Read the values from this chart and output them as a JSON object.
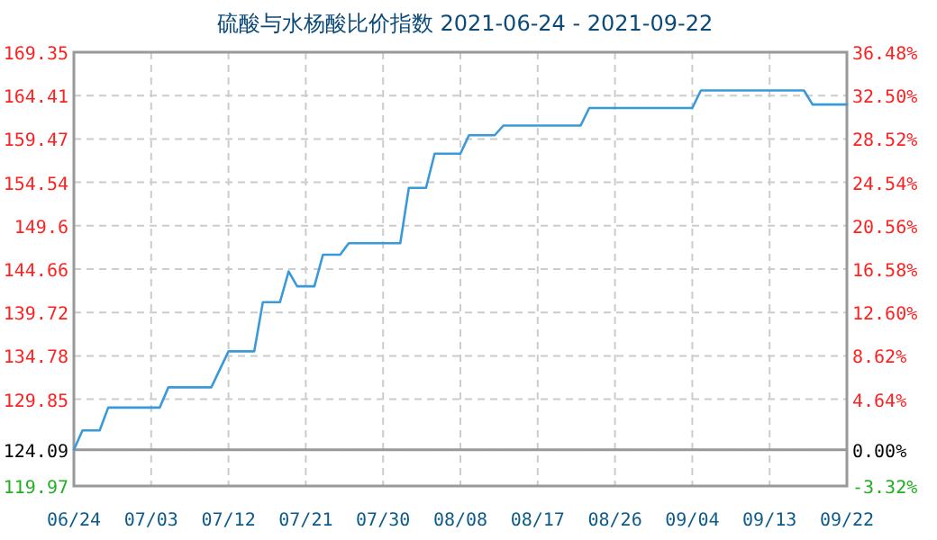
{
  "chart_data": {
    "type": "line",
    "title": "硫酸与水杨酸比价指数 2021-06-24 - 2021-09-22",
    "x": [
      "2021-06-24",
      "2021-06-25",
      "2021-06-27",
      "2021-06-28",
      "2021-07-04",
      "2021-07-05",
      "2021-07-10",
      "2021-07-12",
      "2021-07-15",
      "2021-07-16",
      "2021-07-18",
      "2021-07-19",
      "2021-07-20",
      "2021-07-22",
      "2021-07-23",
      "2021-07-25",
      "2021-07-26",
      "2021-08-01",
      "2021-08-02",
      "2021-08-04",
      "2021-08-05",
      "2021-08-08",
      "2021-08-09",
      "2021-08-12",
      "2021-08-13",
      "2021-08-22",
      "2021-08-23",
      "2021-09-04",
      "2021-09-05",
      "2021-09-17",
      "2021-09-18",
      "2021-09-22"
    ],
    "series": [
      {
        "color": "#3a9ad9",
        "values": [
          124.1,
          126.3,
          126.3,
          128.9,
          128.9,
          131.2,
          131.2,
          135.3,
          135.3,
          140.9,
          140.9,
          144.4,
          142.7,
          142.7,
          146.3,
          146.3,
          147.6,
          147.6,
          153.9,
          153.9,
          157.8,
          157.8,
          159.9,
          159.9,
          161.0,
          161.0,
          163.0,
          163.0,
          165.0,
          165.0,
          163.4,
          163.4
        ]
      }
    ],
    "xlim": [
      "2021-06-24",
      "2021-09-22"
    ],
    "xticks": [
      {
        "value": "2021-06-24",
        "label": "06/24"
      },
      {
        "value": "2021-07-03",
        "label": "07/03"
      },
      {
        "value": "2021-07-12",
        "label": "07/12"
      },
      {
        "value": "2021-07-21",
        "label": "07/21"
      },
      {
        "value": "2021-07-30",
        "label": "07/30"
      },
      {
        "value": "2021-08-08",
        "label": "08/08"
      },
      {
        "value": "2021-08-17",
        "label": "08/17"
      },
      {
        "value": "2021-08-26",
        "label": "08/26"
      },
      {
        "value": "2021-09-04",
        "label": "09/04"
      },
      {
        "value": "2021-09-13",
        "label": "09/13"
      },
      {
        "value": "2021-09-22",
        "label": "09/22"
      }
    ],
    "ylim": [
      119.97,
      169.35
    ],
    "yticks": [
      119.97,
      124.09,
      129.85,
      134.78,
      139.72,
      144.66,
      149.6,
      154.54,
      159.47,
      164.41,
      169.35
    ],
    "y2lim": [
      -3.32,
      36.48
    ],
    "y2ticks": [
      {
        "value": -3.32,
        "label": "-3.32%"
      },
      {
        "value": 0,
        "label": "0.00%"
      },
      {
        "value": 4.64,
        "label": "4.64%"
      },
      {
        "value": 8.62,
        "label": "8.62%"
      },
      {
        "value": 12.6,
        "label": "12.60%"
      },
      {
        "value": 16.58,
        "label": "16.58%"
      },
      {
        "value": 20.56,
        "label": "20.56%"
      },
      {
        "value": 24.54,
        "label": "24.54%"
      },
      {
        "value": 28.52,
        "label": "28.52%"
      },
      {
        "value": 32.5,
        "label": "32.50%"
      },
      {
        "value": 36.48,
        "label": "36.48%"
      }
    ],
    "ref_lines": [
      {
        "axis": "y2",
        "value": 0,
        "color": "#999999",
        "line_style": "solid"
      }
    ],
    "grid": true,
    "line_style": "solid",
    "marker": "none"
  }
}
